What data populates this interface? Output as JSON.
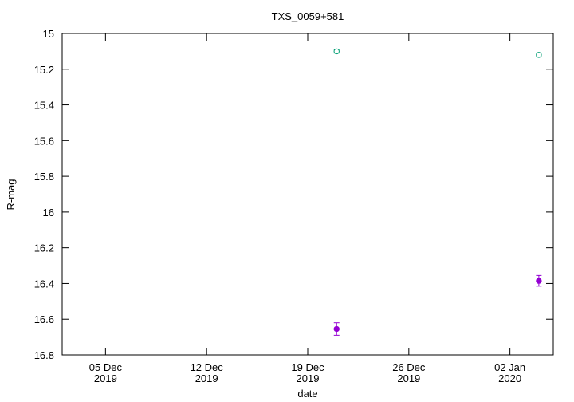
{
  "chart_data": {
    "type": "scatter",
    "title": "TXS_0059+581",
    "xlabel": "date",
    "ylabel": "R-mag",
    "ylim": [
      16.8,
      15
    ],
    "yticks": [
      15,
      15.2,
      15.4,
      15.6,
      15.8,
      16,
      16.2,
      16.4,
      16.6,
      16.8
    ],
    "xlim": [
      "2019-12-02",
      "2020-01-05"
    ],
    "xticks": [
      {
        "value": "2019-12-05",
        "label": "05 Dec\n2019"
      },
      {
        "value": "2019-12-12",
        "label": "12 Dec\n2019"
      },
      {
        "value": "2019-12-19",
        "label": "19 Dec\n2019"
      },
      {
        "value": "2019-12-26",
        "label": "26 Dec\n2019"
      },
      {
        "value": "2020-01-02",
        "label": "02 Jan\n2020"
      }
    ],
    "series": [
      {
        "color": "#009e73",
        "marker": "open-circle",
        "x": [
          "2019-12-21",
          "2020-01-04"
        ],
        "values": [
          15.1,
          15.12
        ],
        "errors": [
          0.01,
          0.01
        ]
      },
      {
        "color": "#9400d3",
        "marker": "filled-circle",
        "x": [
          "2019-12-21",
          "2020-01-04"
        ],
        "values": [
          16.655,
          16.385
        ],
        "errors": [
          0.035,
          0.03
        ]
      }
    ]
  }
}
